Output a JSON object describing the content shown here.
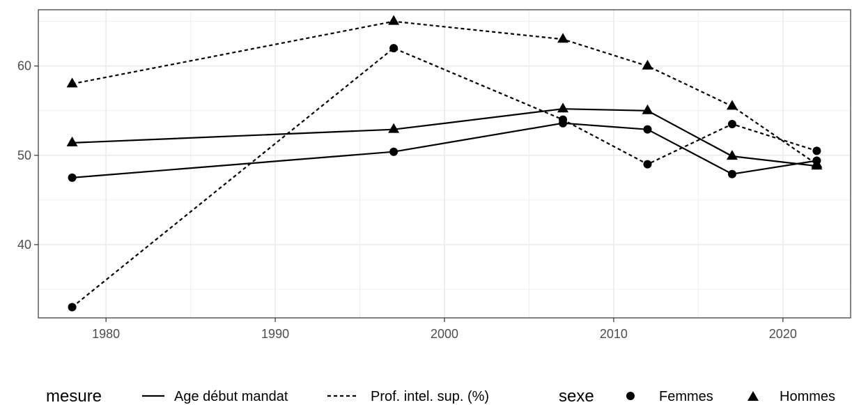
{
  "chart_data": {
    "type": "line",
    "title": "",
    "xlabel": "",
    "ylabel": "",
    "xlim": [
      1976,
      2024
    ],
    "ylim": [
      31.8,
      66.3
    ],
    "x_ticks": [
      1980,
      1990,
      2000,
      2010,
      2020
    ],
    "x_minor": [
      1985,
      1995,
      2005,
      2015
    ],
    "y_ticks": [
      40,
      50,
      60
    ],
    "y_minor": [
      35,
      45,
      55,
      65
    ],
    "x_tick_labels": [
      "1980",
      "1990",
      "2000",
      "2010",
      "2020"
    ],
    "y_tick_labels": [
      "40",
      "50",
      "60"
    ],
    "grid": true,
    "legend_position": "bottom",
    "legend": {
      "linetype_title": "mesure",
      "linetype_items": [
        {
          "label": "Age début mandat",
          "linetype": "solid"
        },
        {
          "label": "Prof. intel. sup. (%)",
          "linetype": "dashed"
        }
      ],
      "shape_title": "sexe",
      "shape_items": [
        {
          "label": "Femmes",
          "shape": "circle"
        },
        {
          "label": "Hommes",
          "shape": "triangle"
        }
      ]
    },
    "series": [
      {
        "mesure": "Age début mandat",
        "sexe": "Femmes",
        "linetype": "solid",
        "shape": "circle",
        "x": [
          1978,
          1997,
          2007,
          2012,
          2017,
          2022
        ],
        "y": [
          47.5,
          50.4,
          53.6,
          52.9,
          47.9,
          49.4
        ]
      },
      {
        "mesure": "Age début mandat",
        "sexe": "Hommes",
        "linetype": "solid",
        "shape": "triangle",
        "x": [
          1978,
          1997,
          2007,
          2012,
          2017,
          2022
        ],
        "y": [
          51.4,
          52.9,
          55.2,
          55.0,
          49.9,
          48.8
        ]
      },
      {
        "mesure": "Prof. intel. sup. (%)",
        "sexe": "Femmes",
        "linetype": "dashed",
        "shape": "circle",
        "x": [
          1978,
          1997,
          2007,
          2012,
          2017,
          2022
        ],
        "y": [
          33.0,
          62.0,
          54.0,
          49.0,
          53.5,
          50.5
        ]
      },
      {
        "mesure": "Prof. intel. sup. (%)",
        "sexe": "Hommes",
        "linetype": "dashed",
        "shape": "triangle",
        "x": [
          1978,
          1997,
          2007,
          2012,
          2017,
          2022
        ],
        "y": [
          58.0,
          65.0,
          63.0,
          60.0,
          55.5,
          49.0
        ]
      }
    ],
    "colors": {
      "line": "#000000",
      "grid": "#ebebeb",
      "panel_border": "#333333",
      "tick_text": "#4d4d4d"
    }
  }
}
